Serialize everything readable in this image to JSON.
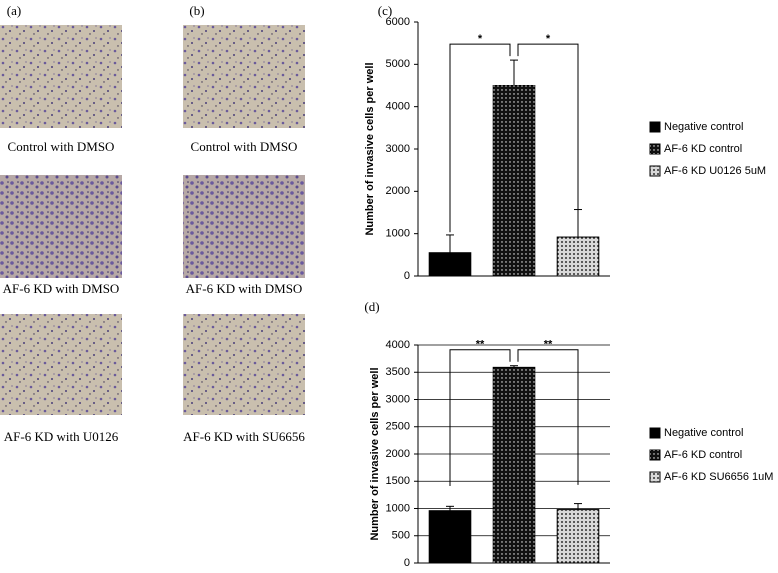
{
  "panels": [
    {
      "label": "(a)",
      "captions": [
        "Control with DMSO",
        "AF-6 KD with DMSO",
        "AF-6 KD with U0126"
      ]
    },
    {
      "label": "(b)",
      "captions": [
        "Control with DMSO",
        "AF-6 KD with DMSO",
        "AF-6 KD with SU6656"
      ]
    }
  ],
  "chart_data": [
    {
      "type": "bar",
      "panel_label": "(c)",
      "ylabel": "Number of invasive cells per well",
      "categories": [
        "Negative control",
        "AF-6 KD control",
        "AF-6 KD U0126 5uM"
      ],
      "values": [
        550,
        4500,
        920
      ],
      "errors": [
        420,
        600,
        650
      ],
      "colors": [
        "#000000",
        "#111111",
        "#d8d8d8"
      ],
      "annotations": [
        "*",
        "*"
      ],
      "ylim": [
        0,
        6000
      ],
      "yticks": [
        0,
        1000,
        2000,
        3000,
        4000,
        5000,
        6000
      ],
      "grid": false
    },
    {
      "type": "bar",
      "panel_label": "(d)",
      "ylabel": "Number of invasive cells per well",
      "categories": [
        "Negative control",
        "AF-6 KD control",
        "AF-6 KD SU6656 1uM"
      ],
      "values": [
        960,
        3590,
        980
      ],
      "errors": [
        80,
        30,
        110
      ],
      "colors": [
        "#000000",
        "#111111",
        "#d8d8d8"
      ],
      "annotations": [
        "**",
        "**"
      ],
      "ylim": [
        0,
        4000
      ],
      "yticks": [
        0,
        500,
        1000,
        1500,
        2000,
        2500,
        3000,
        3500,
        4000
      ],
      "grid": true
    }
  ]
}
